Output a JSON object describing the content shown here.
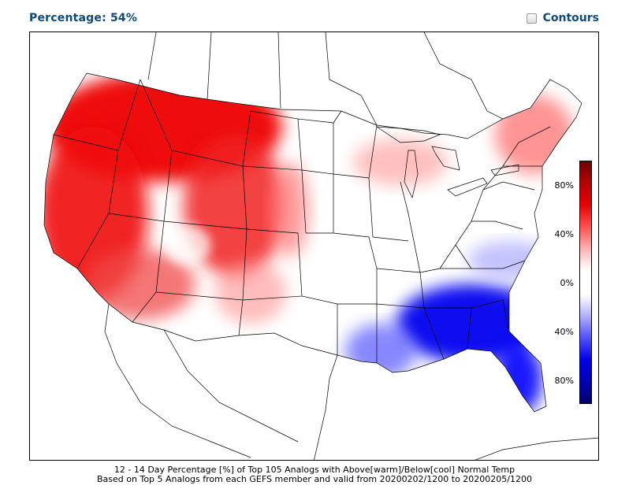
{
  "header": {
    "percentage_label": "Percentage: 54%",
    "contours_label": "Contours",
    "contours_checked": false
  },
  "colorbar": {
    "ticks": [
      "80%",
      "40%",
      "0%",
      "40%",
      "80%"
    ],
    "warm_color": "#e80000",
    "cool_color": "#0000e8"
  },
  "caption": {
    "line1": "12 - 14 Day Percentage [%] of Top 105 Analogs with Above[warm]/Below[cool] Normal Temp",
    "line2": "Based on Top 5 Analogs from each GEFS member and valid from 20200202/1200 to 20200205/1200"
  }
}
